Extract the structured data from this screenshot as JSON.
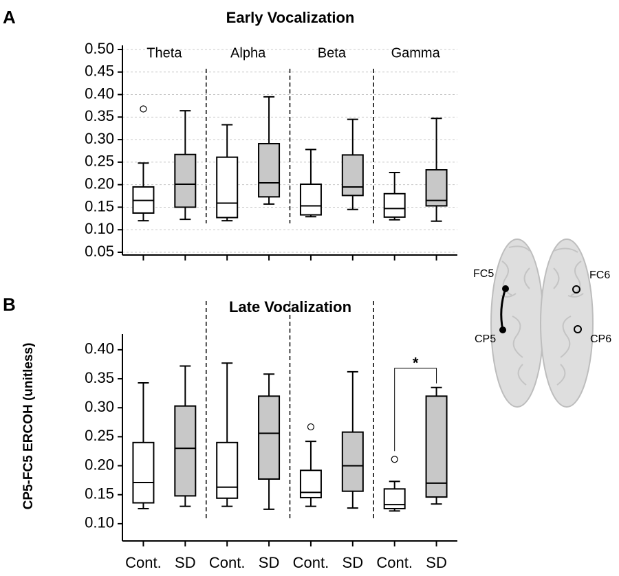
{
  "chart_data": [
    {
      "type": "box",
      "panel": "A",
      "title": "Early Vocalization",
      "groups": [
        "Theta",
        "Alpha",
        "Beta",
        "Gamma"
      ],
      "ylim": [
        0.05,
        0.5
      ],
      "yticks": [
        0.05,
        {
          "value": 0.1,
          "label": "0.10"
        },
        0.15,
        {
          "value": 0.2,
          "label": "0.20"
        },
        0.25,
        {
          "value": 0.3,
          "label": "0.30"
        },
        0.35,
        {
          "value": 0.4,
          "label": "0.40"
        },
        0.45,
        {
          "value": 0.5,
          "label": "0.50"
        }
      ],
      "grid": true,
      "series": [
        {
          "color": "#ffffff",
          "boxes": [
            {
              "min": 0.12,
              "q1": 0.137,
              "median": 0.165,
              "q3": 0.195,
              "max": 0.248,
              "outliers": [
                0.368
              ]
            },
            {
              "min": 0.12,
              "q1": 0.127,
              "median": 0.159,
              "q3": 0.261,
              "max": 0.333,
              "outliers": []
            },
            {
              "min": 0.129,
              "q1": 0.133,
              "median": 0.153,
              "q3": 0.201,
              "max": 0.278,
              "outliers": []
            },
            {
              "min": 0.122,
              "q1": 0.128,
              "median": 0.147,
              "q3": 0.18,
              "max": 0.227,
              "outliers": []
            }
          ]
        },
        {
          "color": "#c8c8c8",
          "boxes": [
            {
              "min": 0.123,
              "q1": 0.15,
              "median": 0.201,
              "q3": 0.267,
              "max": 0.364,
              "outliers": []
            },
            {
              "min": 0.157,
              "q1": 0.173,
              "median": 0.204,
              "q3": 0.291,
              "max": 0.395,
              "outliers": []
            },
            {
              "min": 0.145,
              "q1": 0.176,
              "median": 0.195,
              "q3": 0.266,
              "max": 0.345,
              "outliers": []
            },
            {
              "min": 0.119,
              "q1": 0.153,
              "median": 0.165,
              "q3": 0.233,
              "max": 0.347,
              "outliers": []
            }
          ]
        }
      ]
    },
    {
      "type": "box",
      "panel": "B",
      "title": "Late Vocalization",
      "ylabel": "CP5-FC5 ERCOH (unitless)",
      "categories": [
        "Cont.",
        "SD",
        "Cont.",
        "SD",
        "Cont.",
        "SD",
        "Cont.",
        "SD"
      ],
      "ylim": [
        0.075,
        0.42
      ],
      "yticks": [
        {
          "value": 0.1,
          "label": "0.10"
        },
        0.15,
        {
          "value": 0.2,
          "label": "0.20"
        },
        0.25,
        {
          "value": 0.3,
          "label": "0.30"
        },
        0.35,
        {
          "value": 0.4,
          "label": "0.40"
        }
      ],
      "grid": false,
      "series": [
        {
          "color": "#ffffff",
          "boxes": [
            {
              "min": 0.126,
              "q1": 0.136,
              "median": 0.171,
              "q3": 0.24,
              "max": 0.343,
              "outliers": []
            },
            {
              "min": 0.13,
              "q1": 0.144,
              "median": 0.163,
              "q3": 0.24,
              "max": 0.377,
              "outliers": []
            },
            {
              "min": 0.13,
              "q1": 0.145,
              "median": 0.154,
              "q3": 0.192,
              "max": 0.242,
              "outliers": [
                0.267
              ]
            },
            {
              "min": 0.122,
              "q1": 0.126,
              "median": 0.133,
              "q3": 0.16,
              "max": 0.173,
              "outliers": [
                0.211
              ]
            }
          ]
        },
        {
          "color": "#c8c8c8",
          "boxes": [
            {
              "min": 0.13,
              "q1": 0.148,
              "median": 0.23,
              "q3": 0.303,
              "max": 0.372,
              "outliers": []
            },
            {
              "min": 0.125,
              "q1": 0.177,
              "median": 0.256,
              "q3": 0.32,
              "max": 0.358,
              "outliers": []
            },
            {
              "min": 0.127,
              "q1": 0.156,
              "median": 0.2,
              "q3": 0.258,
              "max": 0.362,
              "outliers": []
            },
            {
              "min": 0.134,
              "q1": 0.146,
              "median": 0.17,
              "q3": 0.32,
              "max": 0.335,
              "outliers": []
            }
          ]
        }
      ],
      "significance": {
        "label": "*",
        "group": 3
      }
    }
  ],
  "brain": {
    "electrodes": [
      "FC5",
      "FC6",
      "CP5",
      "CP6"
    ]
  }
}
